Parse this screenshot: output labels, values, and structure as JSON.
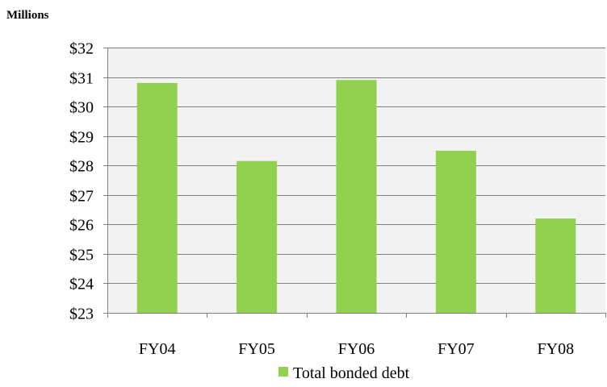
{
  "chart_data": {
    "type": "bar",
    "unit_label": "Millions",
    "categories": [
      "FY04",
      "FY05",
      "FY06",
      "FY07",
      "FY08"
    ],
    "series": [
      {
        "name": "Total bonded debt",
        "values": [
          30.8,
          28.15,
          30.9,
          28.5,
          26.2
        ]
      }
    ],
    "ylim": [
      23,
      32
    ],
    "ytick_values": [
      23,
      24,
      25,
      26,
      27,
      28,
      29,
      30,
      31,
      32
    ],
    "ytick_labels": [
      "$23",
      "$24",
      "$25",
      "$26",
      "$27",
      "$28",
      "$29",
      "$30",
      "$31",
      "$32"
    ],
    "grid": true,
    "legend_position": "bottom",
    "colors": {
      "bar": "#92d050",
      "plot_background": "#f2f2f2",
      "gridline": "#808080",
      "axis": "#808080"
    }
  }
}
